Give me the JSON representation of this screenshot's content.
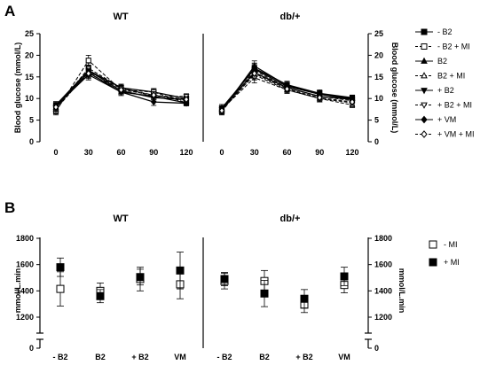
{
  "panels": {
    "a_letter": "A",
    "b_letter": "B",
    "a_titles": [
      "WT",
      "db/+"
    ],
    "b_titles": [
      "WT",
      "db/+"
    ]
  },
  "chart_data": [
    {
      "type": "line",
      "id": "panel-a",
      "ylabel_left": "Blood glucose (mmol/L)",
      "ylabel_right": "Blood glucose (mmol/L)",
      "x": [
        0,
        30,
        60,
        90,
        120
      ],
      "xticks": [
        "0",
        "30",
        "60",
        "90",
        "120"
      ],
      "ylim": [
        0,
        25
      ],
      "yticks": [
        "0",
        "5",
        "10",
        "15",
        "20",
        "25"
      ],
      "subplots": [
        {
          "title": "WT",
          "series": [
            {
              "name": "- B2",
              "marker": "square-filled",
              "dash": "solid",
              "values": [
                8.5,
                16.5,
                12.5,
                11.5,
                10.0
              ],
              "err": [
                0.8,
                1.2,
                0.8,
                0.8,
                0.6
              ]
            },
            {
              "name": "- B2 + MI",
              "marker": "square-open",
              "dash": "dash",
              "values": [
                7.0,
                18.8,
                12.0,
                11.5,
                9.0
              ],
              "err": [
                0.8,
                1.2,
                0.8,
                0.8,
                0.6
              ]
            },
            {
              "name": "B2",
              "marker": "triangle-up-filled",
              "dash": "solid",
              "values": [
                8.0,
                16.0,
                11.5,
                10.5,
                9.0
              ],
              "err": [
                0.8,
                1.2,
                0.8,
                0.8,
                0.6
              ]
            },
            {
              "name": "B2 + MI",
              "marker": "triangle-up-open",
              "dash": "dash",
              "values": [
                7.5,
                16.2,
                12.3,
                10.8,
                9.5
              ],
              "err": [
                0.8,
                1.2,
                0.8,
                0.8,
                0.6
              ]
            },
            {
              "name": "+ B2",
              "marker": "triangle-down-filled",
              "dash": "solid",
              "values": [
                8.0,
                16.5,
                11.8,
                10.2,
                9.8
              ],
              "err": [
                0.8,
                1.2,
                0.8,
                0.8,
                0.6
              ]
            },
            {
              "name": "+ B2 + MI",
              "marker": "triangle-down-open",
              "dash": "dash",
              "values": [
                7.8,
                17.0,
                12.5,
                10.5,
                10.5
              ],
              "err": [
                0.8,
                1.2,
                0.8,
                0.8,
                0.6
              ]
            },
            {
              "name": "+ VM",
              "marker": "diamond-filled",
              "dash": "solid",
              "values": [
                8.3,
                15.5,
                11.5,
                9.2,
                8.9
              ],
              "err": [
                0.8,
                1.2,
                0.8,
                0.8,
                0.6
              ]
            },
            {
              "name": "+ VM + MI",
              "marker": "diamond-open",
              "dash": "dash",
              "values": [
                8.0,
                15.8,
                12.0,
                10.8,
                9.8
              ],
              "err": [
                0.8,
                1.2,
                0.8,
                0.8,
                0.6
              ]
            }
          ]
        },
        {
          "title": "db/+",
          "series": [
            {
              "name": "- B2",
              "marker": "square-filled",
              "dash": "solid",
              "values": [
                7.5,
                17.0,
                13.2,
                11.2,
                10.2
              ],
              "err": [
                0.8,
                1.2,
                0.8,
                0.8,
                0.6
              ]
            },
            {
              "name": "- B2 + MI",
              "marker": "square-open",
              "dash": "dash",
              "values": [
                7.0,
                16.5,
                12.5,
                10.5,
                9.5
              ],
              "err": [
                0.8,
                1.2,
                0.8,
                0.8,
                0.6
              ]
            },
            {
              "name": "B2",
              "marker": "triangle-up-filled",
              "dash": "solid",
              "values": [
                7.2,
                17.5,
                13.0,
                11.0,
                10.0
              ],
              "err": [
                0.8,
                1.2,
                0.8,
                0.8,
                0.6
              ]
            },
            {
              "name": "B2 + MI",
              "marker": "triangle-up-open",
              "dash": "dash",
              "values": [
                7.5,
                15.5,
                12.0,
                10.0,
                8.5
              ],
              "err": [
                0.8,
                1.2,
                0.8,
                0.8,
                0.6
              ]
            },
            {
              "name": "+ B2",
              "marker": "triangle-down-filled",
              "dash": "solid",
              "values": [
                7.8,
                16.0,
                12.5,
                10.5,
                9.8
              ],
              "err": [
                0.8,
                1.2,
                0.8,
                0.8,
                0.6
              ]
            },
            {
              "name": "+ B2 + MI",
              "marker": "triangle-down-open",
              "dash": "dash",
              "values": [
                7.5,
                14.8,
                12.0,
                10.0,
                9.0
              ],
              "err": [
                0.8,
                1.2,
                0.8,
                0.8,
                0.6
              ]
            },
            {
              "name": "+ VM",
              "marker": "diamond-filled",
              "dash": "solid",
              "values": [
                7.8,
                16.8,
                12.8,
                11.0,
                9.8
              ],
              "err": [
                0.8,
                1.2,
                0.8,
                0.8,
                0.6
              ]
            },
            {
              "name": "+ VM + MI",
              "marker": "diamond-open",
              "dash": "dash",
              "values": [
                7.2,
                15.8,
                12.2,
                10.2,
                9.2
              ],
              "err": [
                0.8,
                1.2,
                0.8,
                0.8,
                0.6
              ]
            }
          ]
        }
      ],
      "legend": [
        "- B2",
        "- B2 + MI",
        "B2",
        "B2 + MI",
        "+ B2",
        "+ B2 + MI",
        "+ VM",
        "+ VM + MI"
      ],
      "legend_placement": "right",
      "grid": false
    },
    {
      "type": "scatter",
      "id": "panel-b",
      "ylabel_left": "mmol/L.min",
      "ylabel_right": "mmol/L.min",
      "categories": [
        "- B2",
        "B2",
        "+ B2",
        "VM"
      ],
      "ylim": [
        0,
        1800
      ],
      "axis_break": true,
      "yticks": [
        "0",
        "1200",
        "1400",
        "1600",
        "1800"
      ],
      "subplots": [
        {
          "title": "WT",
          "series": [
            {
              "name": "- MI",
              "marker": "square-open",
              "values": [
                1415,
                1400,
                1490,
                1450
              ],
              "err": [
                130,
                60,
                90,
                110
              ]
            },
            {
              "name": "+ MI",
              "marker": "square-filled",
              "values": [
                1580,
                1360,
                1505,
                1555
              ],
              "err": [
                70,
                50,
                60,
                140
              ]
            }
          ]
        },
        {
          "title": "db/+",
          "series": [
            {
              "name": "- MI",
              "marker": "square-open",
              "values": [
                1475,
                1475,
                1295,
                1445
              ],
              "err": [
                60,
                80,
                60,
                60
              ]
            },
            {
              "name": "+ MI",
              "marker": "square-filled",
              "values": [
                1490,
                1380,
                1340,
                1510
              ],
              "err": [
                50,
                100,
                70,
                70
              ]
            }
          ]
        }
      ],
      "legend": [
        "- MI",
        "+ MI"
      ],
      "legend_placement": "right",
      "grid": false
    }
  ]
}
